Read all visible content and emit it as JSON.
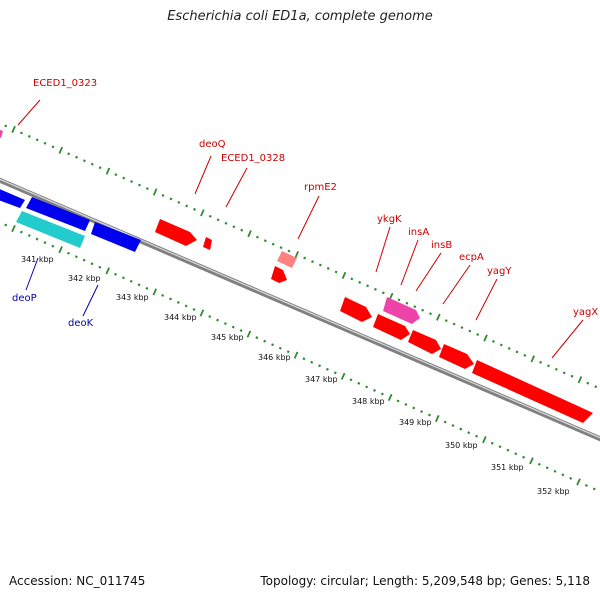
{
  "title": "Escherichia coli ED1a, complete genome",
  "accession": "Accession: NC_011745",
  "topology": "Topology: circular; Length: 5,209,548 bp; Genes: 5,118",
  "colors": {
    "backbone_dark": "#808080",
    "backbone_light": "#d0d0d0",
    "ticks_green": "#2e8b2e",
    "gene_label_forward": "#cc0000",
    "gene_label_reverse": "#0000aa",
    "gene_red": "#ff0000",
    "gene_blue": "#0000ee",
    "gene_cyan": "#22cccc",
    "gene_pink": "#ee44aa",
    "gene_light_red": "#ff8080"
  },
  "kbp_ticks": [
    "341 kbp",
    "342 kbp",
    "343 kbp",
    "344 kbp",
    "345 kbp",
    "346 kbp",
    "347 kbp",
    "348 kbp",
    "349 kbp",
    "350 kbp",
    "351 kbp",
    "352 kbp"
  ],
  "gene_labels": {
    "forward": [
      "ECED1_0323",
      "deoQ",
      "ECED1_0328",
      "rpmE2",
      "ykgK",
      "insA",
      "insB",
      "ecpA",
      "yagY",
      "yagX"
    ],
    "reverse": [
      "deoP",
      "deoK"
    ]
  }
}
